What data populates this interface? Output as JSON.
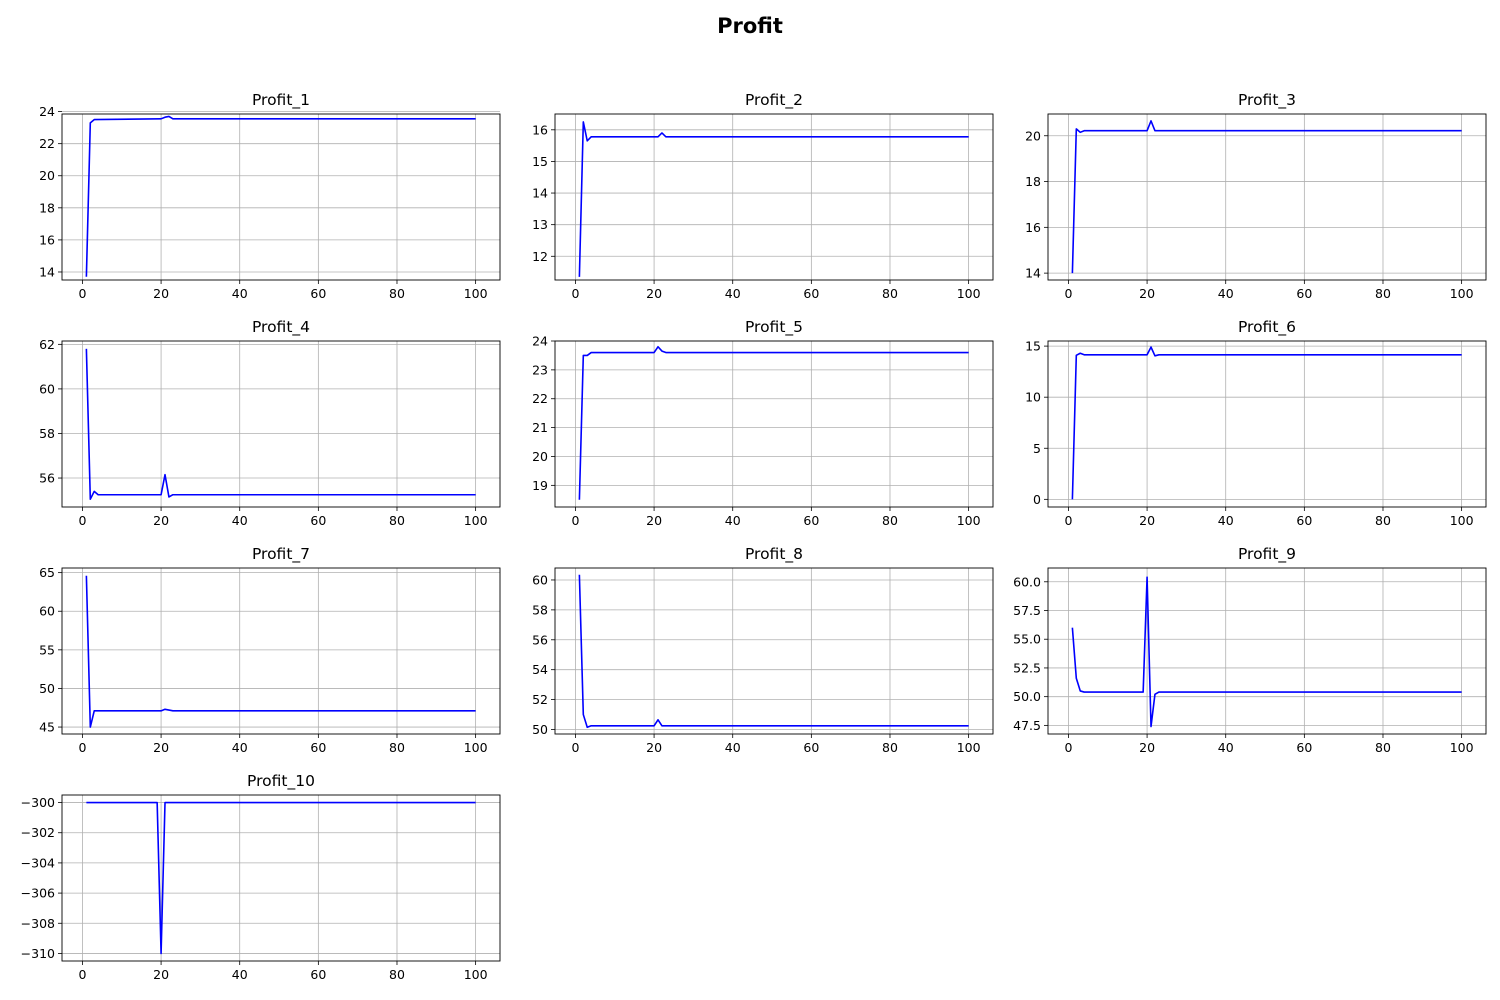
{
  "figure": {
    "title": "Profit",
    "line_color": "#0000ff",
    "grid_color": "#b0b0b0"
  },
  "chart_data": [
    {
      "type": "line",
      "title": "Profit_1",
      "xlabel": "",
      "ylabel": "",
      "xlim": [
        1,
        100
      ],
      "ylim": [
        13.5,
        23.85
      ],
      "grid": true,
      "x_ticks": [
        0,
        20,
        40,
        60,
        80,
        100
      ],
      "y_ticks": [
        14,
        16,
        18,
        20,
        22,
        24
      ],
      "series": [
        {
          "points": [
            [
              1,
              13.7
            ],
            [
              2,
              23.3
            ],
            [
              3,
              23.5
            ],
            [
              20,
              23.55
            ],
            [
              21,
              23.65
            ],
            [
              22,
              23.7
            ],
            [
              23,
              23.55
            ],
            [
              100,
              23.55
            ]
          ]
        }
      ]
    },
    {
      "type": "line",
      "title": "Profit_2",
      "xlabel": "",
      "ylabel": "",
      "xlim": [
        1,
        100
      ],
      "ylim": [
        11.25,
        16.5
      ],
      "grid": true,
      "x_ticks": [
        0,
        20,
        40,
        60,
        80,
        100
      ],
      "y_ticks": [
        12,
        13,
        14,
        15,
        16
      ],
      "series": [
        {
          "points": [
            [
              1,
              11.35
            ],
            [
              2,
              16.25
            ],
            [
              3,
              15.65
            ],
            [
              4,
              15.78
            ],
            [
              21,
              15.78
            ],
            [
              22,
              15.9
            ],
            [
              23,
              15.78
            ],
            [
              100,
              15.78
            ]
          ]
        }
      ]
    },
    {
      "type": "line",
      "title": "Profit_3",
      "xlabel": "",
      "ylabel": "",
      "xlim": [
        1,
        100
      ],
      "ylim": [
        13.7,
        20.95
      ],
      "grid": true,
      "x_ticks": [
        0,
        20,
        40,
        60,
        80,
        100
      ],
      "y_ticks": [
        14,
        16,
        18,
        20
      ],
      "series": [
        {
          "points": [
            [
              1,
              14.0
            ],
            [
              2,
              20.3
            ],
            [
              3,
              20.15
            ],
            [
              4,
              20.22
            ],
            [
              20,
              20.22
            ],
            [
              21,
              20.65
            ],
            [
              22,
              20.22
            ],
            [
              100,
              20.22
            ]
          ]
        }
      ]
    },
    {
      "type": "line",
      "title": "Profit_4",
      "xlabel": "",
      "ylabel": "",
      "xlim": [
        1,
        100
      ],
      "ylim": [
        54.7,
        62.15
      ],
      "grid": true,
      "x_ticks": [
        0,
        20,
        40,
        60,
        80,
        100
      ],
      "y_ticks": [
        56,
        58,
        60,
        62
      ],
      "series": [
        {
          "points": [
            [
              1,
              61.8
            ],
            [
              2,
              55.05
            ],
            [
              3,
              55.4
            ],
            [
              4,
              55.25
            ],
            [
              20,
              55.25
            ],
            [
              21,
              56.15
            ],
            [
              22,
              55.15
            ],
            [
              23,
              55.25
            ],
            [
              100,
              55.25
            ]
          ]
        }
      ]
    },
    {
      "type": "line",
      "title": "Profit_5",
      "xlabel": "",
      "ylabel": "",
      "xlim": [
        1,
        100
      ],
      "ylim": [
        18.25,
        24.0
      ],
      "grid": true,
      "x_ticks": [
        0,
        20,
        40,
        60,
        80,
        100
      ],
      "y_ticks": [
        19,
        20,
        21,
        22,
        23,
        24
      ],
      "series": [
        {
          "points": [
            [
              1,
              18.5
            ],
            [
              2,
              23.5
            ],
            [
              3,
              23.5
            ],
            [
              4,
              23.6
            ],
            [
              20,
              23.6
            ],
            [
              21,
              23.8
            ],
            [
              22,
              23.65
            ],
            [
              23,
              23.6
            ],
            [
              100,
              23.6
            ]
          ]
        }
      ]
    },
    {
      "type": "line",
      "title": "Profit_6",
      "xlabel": "",
      "ylabel": "",
      "xlim": [
        1,
        100
      ],
      "ylim": [
        -0.75,
        15.5
      ],
      "grid": true,
      "x_ticks": [
        0,
        20,
        40,
        60,
        80,
        100
      ],
      "y_ticks": [
        0,
        5,
        10,
        15
      ],
      "series": [
        {
          "points": [
            [
              1,
              0.0
            ],
            [
              2,
              14.1
            ],
            [
              3,
              14.3
            ],
            [
              4,
              14.15
            ],
            [
              20,
              14.15
            ],
            [
              21,
              14.9
            ],
            [
              22,
              14.05
            ],
            [
              23,
              14.15
            ],
            [
              100,
              14.15
            ]
          ]
        }
      ]
    },
    {
      "type": "line",
      "title": "Profit_7",
      "xlabel": "",
      "ylabel": "",
      "xlim": [
        1,
        100
      ],
      "ylim": [
        44.1,
        65.6
      ],
      "grid": true,
      "x_ticks": [
        0,
        20,
        40,
        60,
        80,
        100
      ],
      "y_ticks": [
        45,
        50,
        55,
        60,
        65
      ],
      "series": [
        {
          "points": [
            [
              1,
              64.6
            ],
            [
              2,
              45.0
            ],
            [
              3,
              47.1
            ],
            [
              20,
              47.1
            ],
            [
              21,
              47.3
            ],
            [
              22,
              47.2
            ],
            [
              23,
              47.1
            ],
            [
              100,
              47.1
            ]
          ]
        }
      ]
    },
    {
      "type": "line",
      "title": "Profit_8",
      "xlabel": "",
      "ylabel": "",
      "xlim": [
        1,
        100
      ],
      "ylim": [
        49.7,
        60.8
      ],
      "grid": true,
      "x_ticks": [
        0,
        20,
        40,
        60,
        80,
        100
      ],
      "y_ticks": [
        50,
        52,
        54,
        56,
        58,
        60
      ],
      "series": [
        {
          "points": [
            [
              1,
              60.35
            ],
            [
              2,
              51.0
            ],
            [
              3,
              50.15
            ],
            [
              4,
              50.25
            ],
            [
              20,
              50.25
            ],
            [
              21,
              50.65
            ],
            [
              22,
              50.25
            ],
            [
              100,
              50.25
            ]
          ]
        }
      ]
    },
    {
      "type": "line",
      "title": "Profit_9",
      "xlabel": "",
      "ylabel": "",
      "xlim": [
        1,
        100
      ],
      "ylim": [
        46.75,
        61.2
      ],
      "grid": true,
      "x_ticks": [
        0,
        20,
        40,
        60,
        80,
        100
      ],
      "y_ticks": [
        47.5,
        50.0,
        52.5,
        55.0,
        57.5,
        60.0
      ],
      "series": [
        {
          "points": [
            [
              1,
              56.0
            ],
            [
              2,
              51.6
            ],
            [
              3,
              50.5
            ],
            [
              4,
              50.4
            ],
            [
              19,
              50.4
            ],
            [
              20,
              60.4
            ],
            [
              21,
              47.4
            ],
            [
              22,
              50.2
            ],
            [
              23,
              50.4
            ],
            [
              100,
              50.4
            ]
          ]
        }
      ]
    },
    {
      "type": "line",
      "title": "Profit_10",
      "xlabel": "",
      "ylabel": "",
      "xlim": [
        1,
        100
      ],
      "ylim": [
        -310.5,
        -299.5
      ],
      "grid": true,
      "x_ticks": [
        0,
        20,
        40,
        60,
        80,
        100
      ],
      "y_ticks": [
        -300,
        -302,
        -304,
        -306,
        -308,
        -310
      ],
      "series": [
        {
          "points": [
            [
              1,
              -300.0
            ],
            [
              19,
              -300.0
            ],
            [
              20,
              -310.0
            ],
            [
              21,
              -300.0
            ],
            [
              100,
              -300.0
            ]
          ]
        }
      ]
    }
  ]
}
